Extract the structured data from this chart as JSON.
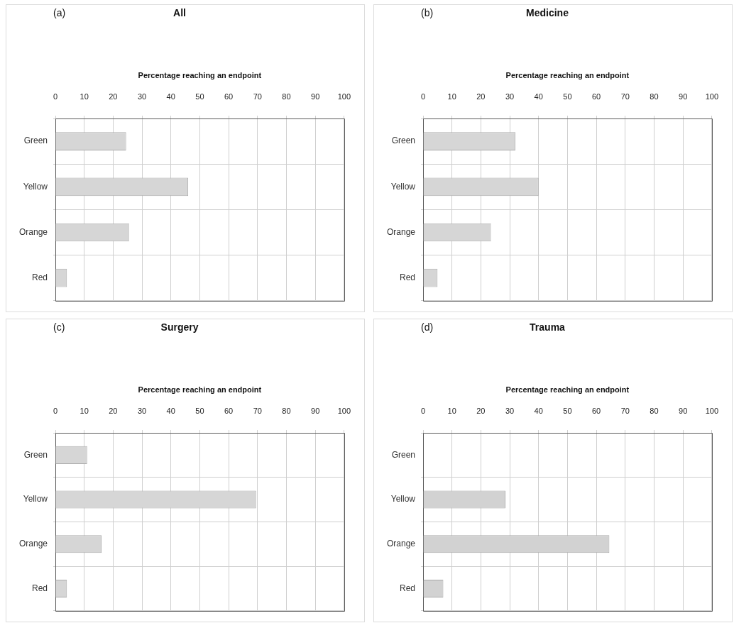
{
  "chart_data": [
    {
      "type": "bar",
      "orientation": "horizontal",
      "title": "All",
      "annotations": [
        "(a)"
      ],
      "xlabel": "Percentage reaching an endpoint",
      "categories": [
        "Green",
        "Yellow",
        "Orange",
        "Red"
      ],
      "values": [
        24.5,
        46,
        25.5,
        4
      ],
      "color": "#d6d6d6",
      "xlim": [
        0,
        100
      ],
      "xticks": [
        0,
        10,
        20,
        30,
        40,
        50,
        60,
        70,
        80,
        90,
        100
      ],
      "grid": true
    },
    {
      "type": "bar",
      "orientation": "horizontal",
      "title": "Medicine",
      "annotations": [
        "(b)"
      ],
      "xlabel": "Percentage reaching an endpoint",
      "categories": [
        "Green",
        "Yellow",
        "Orange",
        "Red"
      ],
      "values": [
        32,
        40,
        23.5,
        5
      ],
      "color": "#d6d6d6",
      "xlim": [
        0,
        100
      ],
      "xticks": [
        0,
        10,
        20,
        30,
        40,
        50,
        60,
        70,
        80,
        90,
        100
      ],
      "grid": true
    },
    {
      "type": "bar",
      "orientation": "horizontal",
      "title": "Surgery",
      "annotations": [
        "(c)"
      ],
      "xlabel": "Percentage reaching an endpoint",
      "categories": [
        "Green",
        "Yellow",
        "Orange",
        "Red"
      ],
      "values": [
        11,
        69.5,
        16,
        4
      ],
      "color": "#d6d6d6",
      "xlim": [
        0,
        100
      ],
      "xticks": [
        0,
        10,
        20,
        30,
        40,
        50,
        60,
        70,
        80,
        90,
        100
      ],
      "grid": true
    },
    {
      "type": "bar",
      "orientation": "horizontal",
      "title": "Trauma",
      "annotations": [
        "(d)"
      ],
      "xlabel": "Percentage reaching an endpoint",
      "categories": [
        "Green",
        "Yellow",
        "Orange",
        "Red"
      ],
      "values": [
        0,
        28.5,
        64.5,
        7
      ],
      "color": "#d2d2d2",
      "xlim": [
        0,
        100
      ],
      "xticks": [
        0,
        10,
        20,
        30,
        40,
        50,
        60,
        70,
        80,
        90,
        100
      ],
      "grid": true
    }
  ]
}
